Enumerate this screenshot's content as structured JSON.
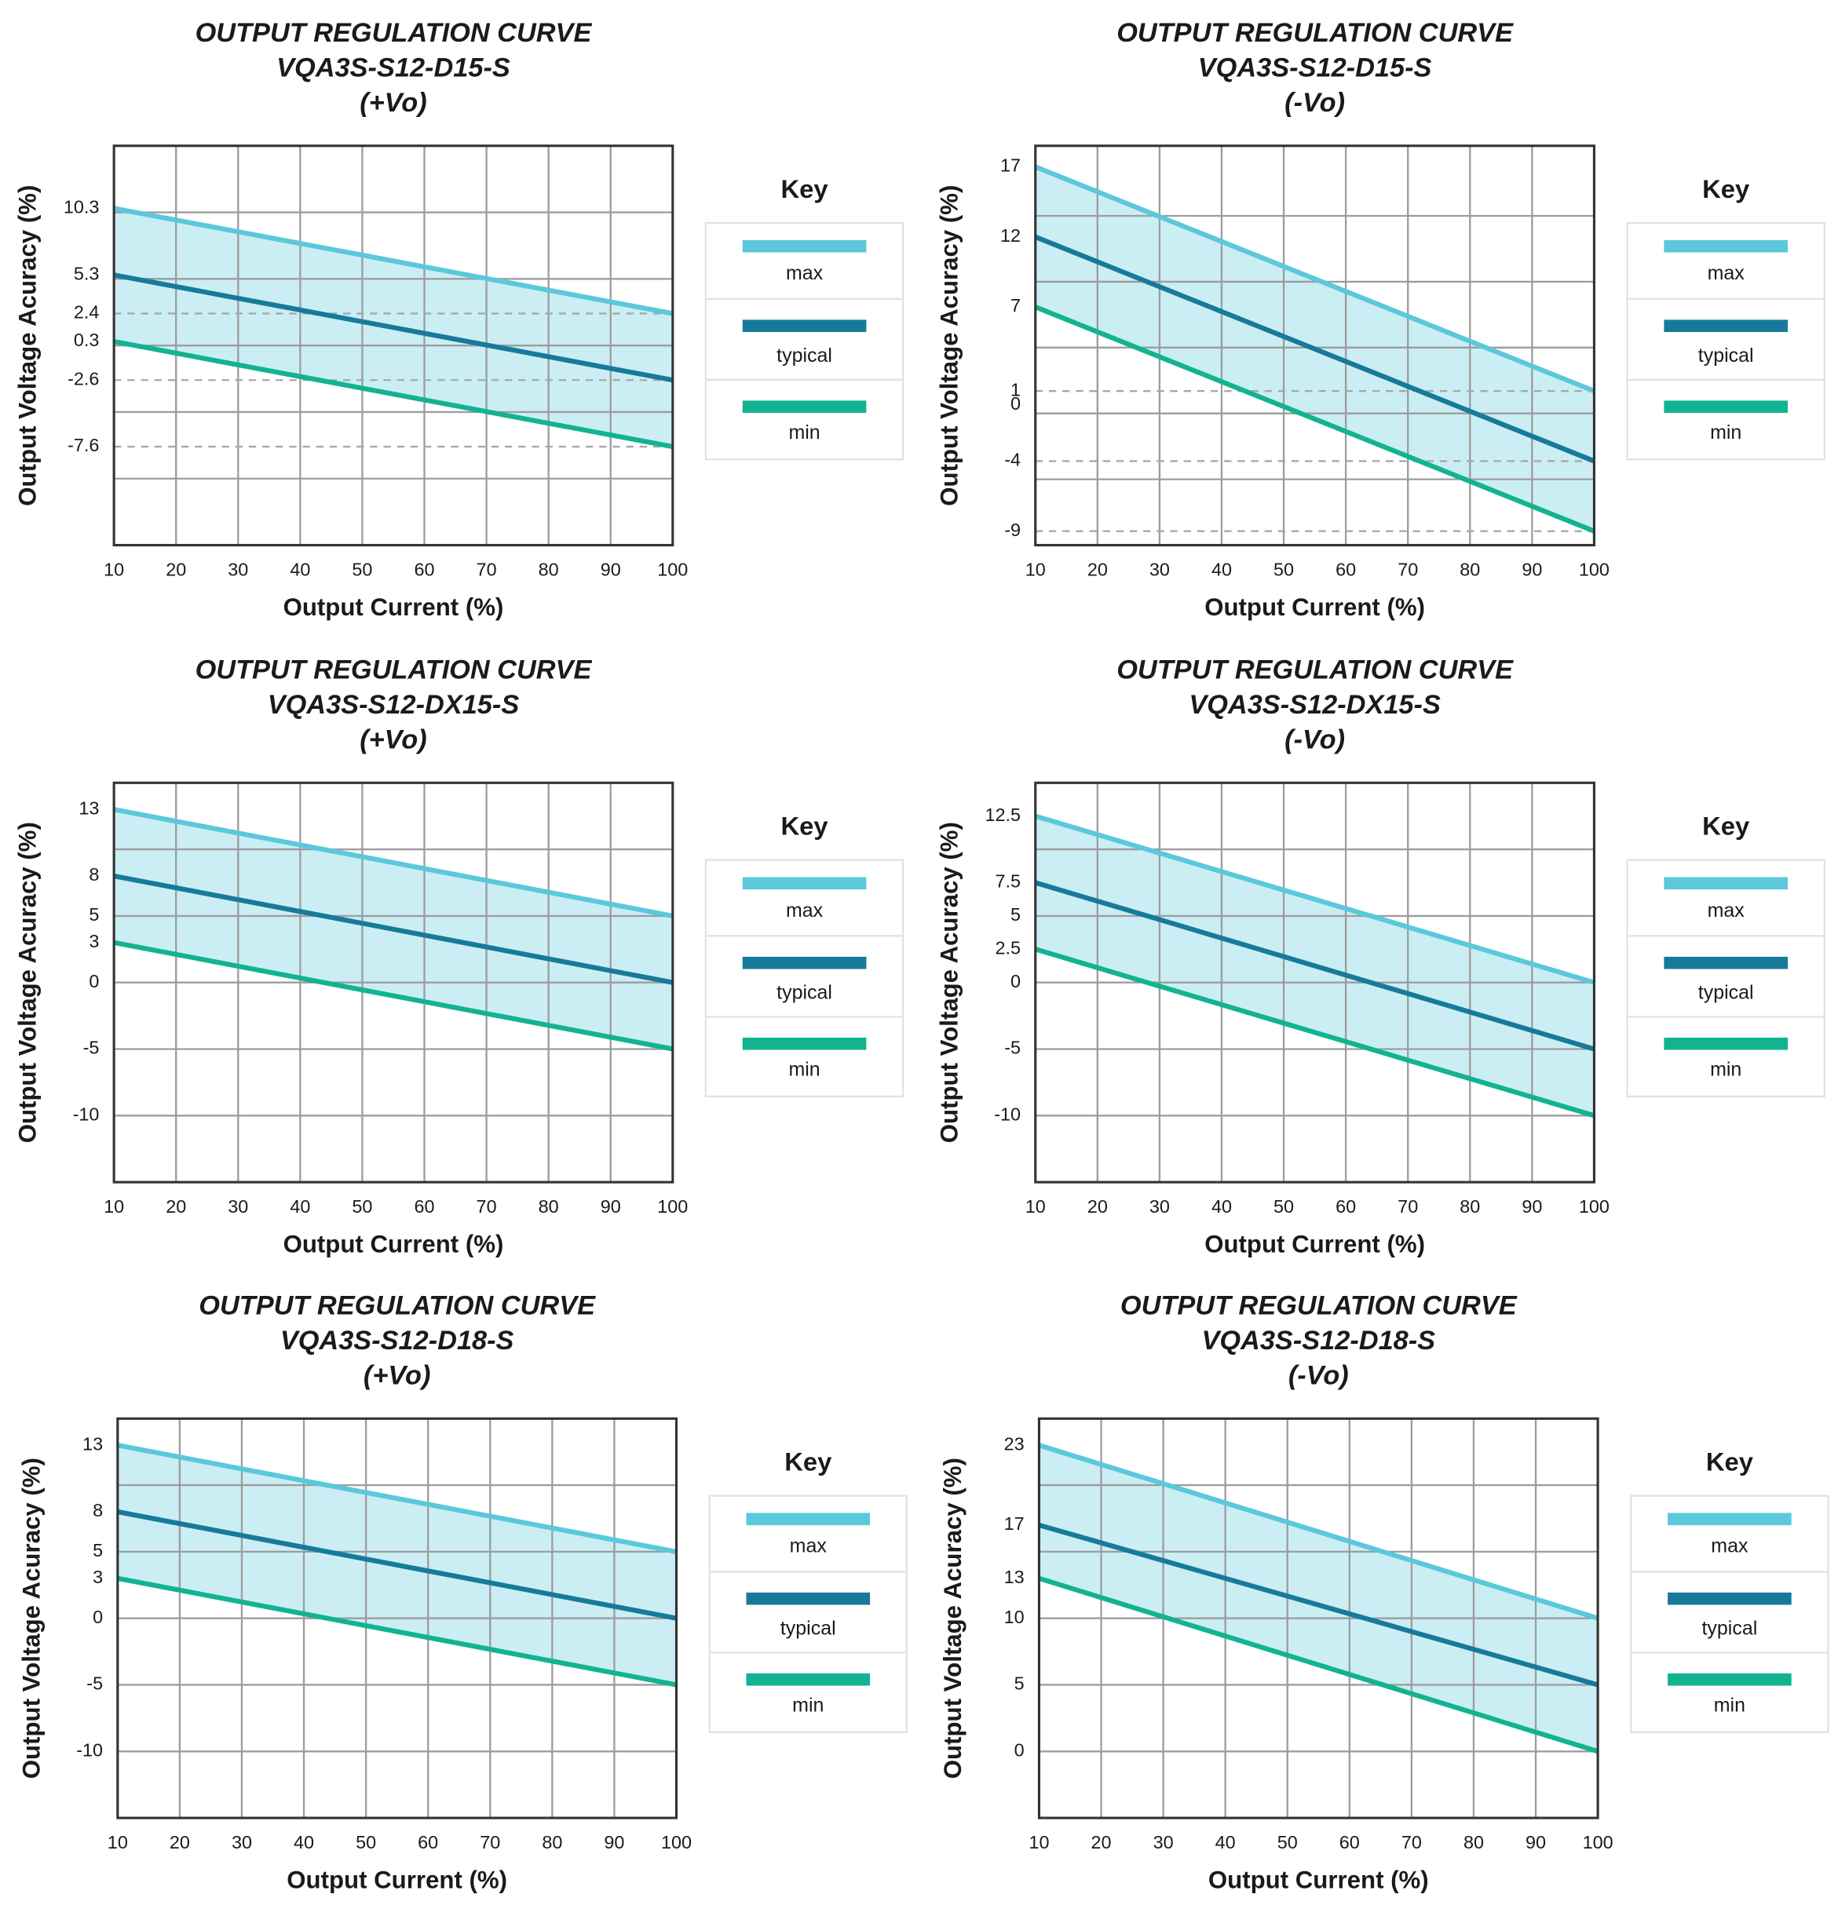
{
  "chart_data": [
    {
      "type": "line",
      "title": [
        "OUTPUT REGULATION CURVE",
        "VQA3S-S12-D15-S",
        "(+Vo)"
      ],
      "x_label": "Output Current (%)",
      "y_label": "Output Voltage Acuracy (%)",
      "legend_title": "Key",
      "x": [
        10,
        100
      ],
      "xlim": [
        10,
        100
      ],
      "xticks": [
        10,
        20,
        30,
        40,
        50,
        60,
        70,
        80,
        90,
        100
      ],
      "ylim": [
        -15,
        15
      ],
      "yticks": [
        10.3,
        5.3,
        2.4,
        0.3,
        -2.6,
        -7.6
      ],
      "ygrid": [
        10,
        5,
        0,
        -5,
        -10
      ],
      "dashed": [
        2.4,
        -2.6,
        -7.6
      ],
      "fill_color": "#cbeef4",
      "series": [
        {
          "name": "max",
          "color": "#5bc8dc",
          "values": [
            10.3,
            2.4
          ]
        },
        {
          "name": "typical",
          "color": "#177a9a",
          "values": [
            5.3,
            -2.6
          ]
        },
        {
          "name": "min",
          "color": "#12b391",
          "values": [
            0.3,
            -7.6
          ]
        }
      ]
    },
    {
      "type": "line",
      "title": [
        "OUTPUT REGULATION CURVE",
        "VQA3S-S12-D15-S",
        "(-Vo)"
      ],
      "x_label": "Output Current (%)",
      "y_label": "Output Voltage Acuracy (%)",
      "legend_title": "Key",
      "x": [
        10,
        100
      ],
      "xlim": [
        10,
        100
      ],
      "xticks": [
        10,
        20,
        30,
        40,
        50,
        60,
        70,
        80,
        90,
        100
      ],
      "ylim": [
        -10,
        18.5
      ],
      "yticks": [
        17,
        12,
        7,
        1,
        0,
        -4,
        -9
      ],
      "ygrid": [
        13.5,
        8.8,
        4.1,
        -0.6,
        -5.3
      ],
      "dashed": [
        1,
        -4,
        -9
      ],
      "fill_color": "#cbeef4",
      "series": [
        {
          "name": "max",
          "color": "#5bc8dc",
          "values": [
            17,
            1
          ]
        },
        {
          "name": "typical",
          "color": "#177a9a",
          "values": [
            12,
            -4
          ]
        },
        {
          "name": "min",
          "color": "#12b391",
          "values": [
            7,
            -9
          ]
        }
      ]
    },
    {
      "type": "line",
      "title": [
        "OUTPUT REGULATION CURVE",
        "VQA3S-S12-DX15-S",
        "(+Vo)"
      ],
      "x_label": "Output Current (%)",
      "y_label": "Output Voltage Acuracy (%)",
      "legend_title": "Key",
      "x": [
        10,
        100
      ],
      "xlim": [
        10,
        100
      ],
      "xticks": [
        10,
        20,
        30,
        40,
        50,
        60,
        70,
        80,
        90,
        100
      ],
      "ylim": [
        -15,
        15
      ],
      "yticks": [
        13,
        8,
        5,
        3,
        0,
        -5,
        -10
      ],
      "ygrid": [
        10,
        5,
        0,
        -5,
        -10
      ],
      "fill_color": "#cbeef4",
      "series": [
        {
          "name": "max",
          "color": "#5bc8dc",
          "values": [
            13,
            5
          ]
        },
        {
          "name": "typical",
          "color": "#177a9a",
          "values": [
            8,
            0
          ]
        },
        {
          "name": "min",
          "color": "#12b391",
          "values": [
            3,
            -5
          ]
        }
      ]
    },
    {
      "type": "line",
      "title": [
        "OUTPUT REGULATION CURVE",
        "VQA3S-S12-DX15-S",
        "(-Vo)"
      ],
      "x_label": "Output Current (%)",
      "y_label": "Output Voltage Acuracy (%)",
      "legend_title": "Key",
      "x": [
        10,
        100
      ],
      "xlim": [
        10,
        100
      ],
      "xticks": [
        10,
        20,
        30,
        40,
        50,
        60,
        70,
        80,
        90,
        100
      ],
      "ylim": [
        -15,
        15
      ],
      "yticks": [
        12.5,
        7.5,
        5,
        2.5,
        0,
        -5,
        -10
      ],
      "ygrid": [
        10,
        5,
        0,
        -5,
        -10
      ],
      "fill_color": "#cbeef4",
      "series": [
        {
          "name": "max",
          "color": "#5bc8dc",
          "values": [
            12.5,
            0
          ]
        },
        {
          "name": "typical",
          "color": "#177a9a",
          "values": [
            7.5,
            -5
          ]
        },
        {
          "name": "min",
          "color": "#12b391",
          "values": [
            2.5,
            -10
          ]
        }
      ]
    },
    {
      "type": "line",
      "title": [
        "OUTPUT REGULATION CURVE",
        "VQA3S-S12-D18-S",
        "(+Vo)"
      ],
      "x_label": "Output Current (%)",
      "y_label": "Output Voltage Acuracy (%)",
      "legend_title": "Key",
      "x": [
        10,
        100
      ],
      "xlim": [
        10,
        100
      ],
      "xticks": [
        10,
        20,
        30,
        40,
        50,
        60,
        70,
        80,
        90,
        100
      ],
      "ylim": [
        -15,
        15
      ],
      "yticks": [
        13,
        8,
        5,
        3,
        0,
        -5,
        -10
      ],
      "ygrid": [
        10,
        5,
        0,
        -5,
        -10
      ],
      "fill_color": "#cbeef4",
      "series": [
        {
          "name": "max",
          "color": "#5bc8dc",
          "values": [
            13,
            5
          ]
        },
        {
          "name": "typical",
          "color": "#177a9a",
          "values": [
            8,
            0
          ]
        },
        {
          "name": "min",
          "color": "#12b391",
          "values": [
            3,
            -5
          ]
        }
      ]
    },
    {
      "type": "line",
      "title": [
        "OUTPUT REGULATION CURVE",
        "VQA3S-S12-D18-S",
        "(-Vo)"
      ],
      "x_label": "Output Current (%)",
      "y_label": "Output Voltage Acuracy (%)",
      "legend_title": "Key",
      "x": [
        10,
        100
      ],
      "xlim": [
        10,
        100
      ],
      "xticks": [
        10,
        20,
        30,
        40,
        50,
        60,
        70,
        80,
        90,
        100
      ],
      "ylim": [
        -5,
        25
      ],
      "yticks": [
        23,
        17,
        13,
        10,
        5,
        0
      ],
      "ygrid": [
        20,
        15,
        10,
        5,
        0
      ],
      "fill_color": "#cbeef4",
      "series": [
        {
          "name": "max",
          "color": "#5bc8dc",
          "values": [
            23,
            10
          ]
        },
        {
          "name": "typical",
          "color": "#177a9a",
          "values": [
            17,
            5
          ]
        },
        {
          "name": "min",
          "color": "#12b391",
          "values": [
            13,
            0
          ]
        }
      ]
    }
  ]
}
